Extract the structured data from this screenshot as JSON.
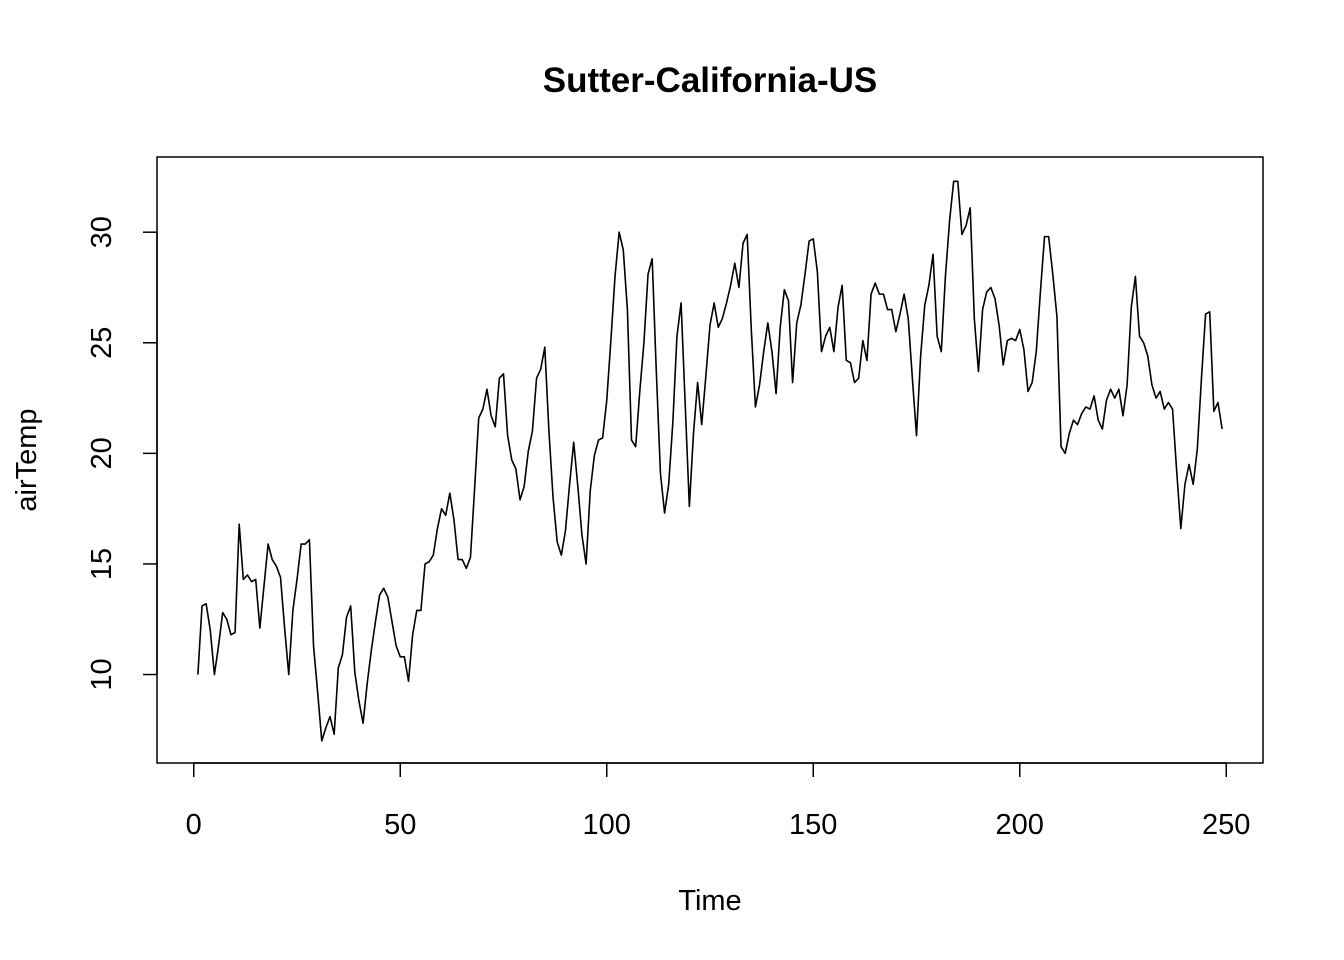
{
  "chart_data": {
    "type": "line",
    "title": "Sutter-California-US",
    "xlabel": "Time",
    "ylabel": "airTemp",
    "xlim": [
      -8.9,
      258.9
    ],
    "ylim": [
      6.0,
      33.4
    ],
    "xticks": [
      0,
      50,
      100,
      150,
      200,
      250
    ],
    "yticks": [
      10,
      15,
      20,
      25,
      30
    ],
    "grid": false,
    "series": [
      {
        "x_start": 1,
        "values": [
          10.0,
          13.1,
          13.2,
          12.0,
          10.0,
          11.3,
          12.8,
          12.5,
          11.8,
          11.9,
          16.8,
          14.3,
          14.5,
          14.2,
          14.3,
          12.1,
          14.0,
          15.9,
          15.2,
          14.9,
          14.4,
          12.1,
          10.0,
          12.9,
          14.3,
          15.9,
          15.9,
          16.1,
          11.3,
          9.2,
          7.0,
          7.6,
          8.1,
          7.3,
          10.3,
          10.9,
          12.6,
          13.1,
          10.1,
          8.8,
          7.8,
          9.6,
          11.1,
          12.4,
          13.6,
          13.9,
          13.5,
          12.4,
          11.3,
          10.8,
          10.8,
          9.7,
          11.8,
          12.9,
          12.9,
          15.0,
          15.1,
          15.4,
          16.6,
          17.5,
          17.2,
          18.2,
          17.0,
          15.2,
          15.2,
          14.8,
          15.3,
          18.4,
          21.6,
          22.0,
          22.9,
          21.7,
          21.2,
          23.4,
          23.6,
          20.8,
          19.7,
          19.3,
          17.9,
          18.5,
          20.1,
          21.0,
          23.4,
          23.8,
          24.8,
          21.0,
          18.0,
          16.0,
          15.4,
          16.5,
          18.6,
          20.5,
          18.5,
          16.3,
          15.0,
          18.3,
          19.9,
          20.6,
          20.7,
          22.4,
          25.1,
          28.0,
          30.0,
          29.2,
          26.5,
          20.6,
          20.3,
          22.8,
          25.0,
          28.1,
          28.8,
          23.7,
          19.1,
          17.3,
          18.6,
          21.4,
          25.3,
          26.8,
          22.2,
          17.6,
          20.9,
          23.2,
          21.3,
          23.5,
          25.8,
          26.8,
          25.7,
          26.1,
          26.8,
          27.6,
          28.6,
          27.5,
          29.5,
          29.9,
          25.6,
          22.1,
          23.1,
          24.6,
          25.9,
          24.6,
          22.7,
          25.7,
          27.4,
          26.9,
          23.2,
          25.9,
          26.7,
          28.1,
          29.6,
          29.7,
          28.2,
          24.6,
          25.3,
          25.7,
          24.6,
          26.6,
          27.6,
          24.2,
          24.1,
          23.2,
          23.4,
          25.1,
          24.2,
          27.2,
          27.7,
          27.2,
          27.2,
          26.5,
          26.5,
          25.5,
          26.3,
          27.2,
          26.1,
          23.4,
          20.8,
          24.4,
          26.7,
          27.6,
          29.0,
          25.3,
          24.6,
          28.0,
          30.5,
          32.3,
          32.3,
          29.9,
          30.3,
          31.1,
          26.1,
          23.7,
          26.5,
          27.3,
          27.5,
          27.0,
          25.8,
          24.0,
          25.1,
          25.2,
          25.1,
          25.6,
          24.7,
          22.8,
          23.2,
          24.6,
          27.3,
          29.8,
          29.8,
          28.1,
          26.2,
          20.3,
          20.0,
          20.9,
          21.5,
          21.3,
          21.8,
          22.1,
          22.0,
          22.6,
          21.5,
          21.1,
          22.4,
          22.9,
          22.5,
          22.9,
          21.7,
          23.1,
          26.6,
          28.0,
          25.3,
          25.0,
          24.4,
          23.1,
          22.5,
          22.8,
          22.0,
          22.3,
          22.0,
          19.2,
          16.6,
          18.6,
          19.5,
          18.6,
          20.2,
          23.4,
          26.3,
          26.4,
          21.9,
          22.3,
          21.1
        ]
      }
    ]
  }
}
